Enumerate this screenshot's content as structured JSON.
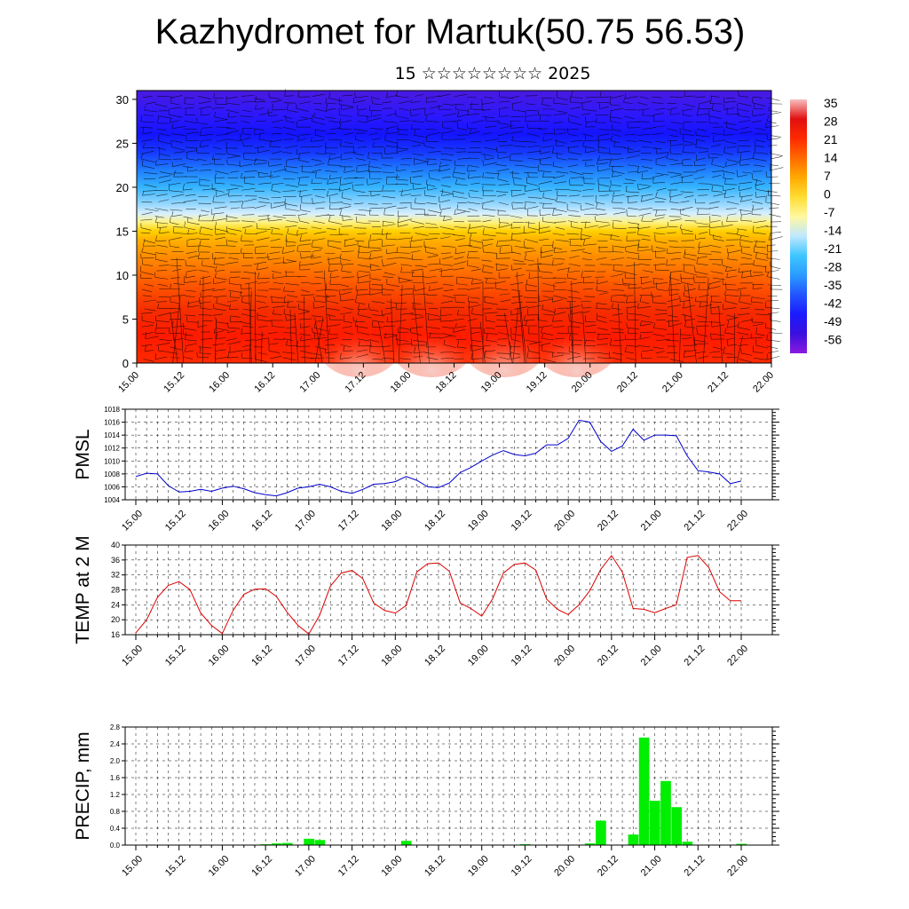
{
  "title": "Kazhydromet for Martuk(50.75 56.53)",
  "subtitle": "15 ☆☆☆☆☆☆☆☆ 2025",
  "colors": {
    "pmsl_line": "#0000cc",
    "temp_line": "#dd0000",
    "precip_bar": "#00ee00",
    "barb": "#000000"
  },
  "chart_data": [
    {
      "type": "heatmap",
      "name": "cross-section",
      "yticks": [
        "0",
        "5",
        "10",
        "15",
        "20",
        "25",
        "30"
      ],
      "ylim": [
        0,
        31
      ],
      "xticks": [
        "15.00",
        "15.12",
        "16.00",
        "16.12",
        "17.00",
        "17.12",
        "18.00",
        "18.12",
        "19.00",
        "19.12",
        "20.00",
        "20.12",
        "21.00",
        "21.12",
        "22.00"
      ],
      "colorbar_labels": [
        "35",
        "28",
        "21",
        "14",
        "7",
        "0",
        "-7",
        "-14",
        "-21",
        "-28",
        "-35",
        "-42",
        "-49",
        "-56"
      ],
      "colorbar_colors": [
        "#f8bfbf",
        "#e01010",
        "#ff2a00",
        "#ff6a00",
        "#ffaa00",
        "#ffdd33",
        "#fff8a0",
        "#bfe8ff",
        "#3fc6ff",
        "#2a9bff",
        "#2255ff",
        "#1a1aff",
        "#3a10dd",
        "#8a1ae0"
      ],
      "profile_levels": [
        0,
        3,
        6,
        9,
        12,
        14,
        15,
        16,
        17,
        18,
        20,
        22,
        24,
        26,
        28,
        31
      ],
      "profile_colors": [
        "#ff2a00",
        "#ff1a00",
        "#f52d00",
        "#ff5800",
        "#ff8a00",
        "#ffb000",
        "#ffd000",
        "#fff280",
        "#d8f0ff",
        "#9ad8ff",
        "#35b5ff",
        "#1e7bff",
        "#1638ff",
        "#1414ff",
        "#2a18ff",
        "#4a1adf"
      ],
      "warm_spots": [
        3.8,
        4.8,
        5.8,
        6.8
      ]
    },
    {
      "type": "line",
      "name": "PMSL",
      "ylabel": "PMSL",
      "ylim": [
        1004,
        1018
      ],
      "yticks": [
        "1004",
        "1006",
        "1008",
        "1010",
        "1012",
        "1014",
        "1016",
        "1018"
      ],
      "xticks": [
        "15.00",
        "15.12",
        "16.00",
        "16.12",
        "17.00",
        "17.12",
        "18.00",
        "18.12",
        "19.00",
        "19.12",
        "20.00",
        "20.12",
        "21.00",
        "21.12",
        "22.00"
      ],
      "values": [
        1007.6,
        1008.1,
        1008.0,
        1006.2,
        1005.2,
        1005.3,
        1005.6,
        1005.3,
        1005.8,
        1006.1,
        1005.7,
        1005.1,
        1004.8,
        1004.6,
        1005.1,
        1005.8,
        1006.0,
        1006.4,
        1006.0,
        1005.3,
        1005.0,
        1005.6,
        1006.4,
        1006.5,
        1006.8,
        1007.6,
        1007.0,
        1006.0,
        1005.9,
        1006.6,
        1008.2,
        1009.0,
        1010.0,
        1010.9,
        1011.6,
        1011.0,
        1010.8,
        1011.2,
        1012.5,
        1012.5,
        1013.5,
        1016.3,
        1016.0,
        1013.0,
        1011.5,
        1012.3,
        1014.9,
        1013.2,
        1014.0,
        1014.0,
        1013.9,
        1010.8,
        1008.5,
        1008.3,
        1008.0,
        1006.5,
        1006.9
      ]
    },
    {
      "type": "line",
      "name": "TEMP at 2 M",
      "ylabel": "TEMP at 2 M",
      "ylim": [
        16,
        40
      ],
      "yticks": [
        "16",
        "20",
        "24",
        "28",
        "32",
        "36",
        "40"
      ],
      "xticks": [
        "15.00",
        "15.12",
        "16.00",
        "16.12",
        "17.00",
        "17.12",
        "18.00",
        "18.12",
        "19.00",
        "19.12",
        "20.00",
        "20.12",
        "21.00",
        "21.12",
        "22.00"
      ],
      "values": [
        16.5,
        20.0,
        26.0,
        29.2,
        30.2,
        28.1,
        21.8,
        18.5,
        16.3,
        22.5,
        26.8,
        28.2,
        28.3,
        26.3,
        22.0,
        18.5,
        16.2,
        21.2,
        29.0,
        32.5,
        33.2,
        31.0,
        24.5,
        22.5,
        21.8,
        23.8,
        32.8,
        35.0,
        35.2,
        33.0,
        24.5,
        23.0,
        21.0,
        25.6,
        32.5,
        34.8,
        35.2,
        33.3,
        25.5,
        22.8,
        21.4,
        24.0,
        27.8,
        33.5,
        37.2,
        32.8,
        23.0,
        22.8,
        21.9,
        23.0,
        24.0,
        36.7,
        37.2,
        34.0,
        27.5,
        25.1,
        25.1
      ]
    },
    {
      "type": "bar",
      "name": "PRECIP",
      "ylabel": "PRECIP, mm",
      "ylim": [
        0,
        2.8
      ],
      "yticks": [
        "0.0",
        "0.4",
        "0.8",
        "1.2",
        "1.6",
        "2.0",
        "2.4",
        "2.8"
      ],
      "xticks": [
        "15.00",
        "15.12",
        "16.00",
        "16.12",
        "17.00",
        "17.12",
        "18.00",
        "18.12",
        "19.00",
        "19.12",
        "20.00",
        "20.12",
        "21.00",
        "21.12",
        "22.00"
      ],
      "values": [
        0,
        0,
        0,
        0,
        0,
        0,
        0,
        0,
        0,
        0,
        0,
        0,
        0.02,
        0.04,
        0.05,
        0,
        0.15,
        0.12,
        0,
        0,
        0,
        0,
        0,
        0,
        0,
        0.1,
        0,
        0,
        0,
        0,
        0,
        0,
        0,
        0,
        0,
        0,
        0.02,
        0,
        0,
        0,
        0,
        0,
        0.04,
        0.58,
        0,
        0,
        0.25,
        2.55,
        1.05,
        1.52,
        0.9,
        0.08,
        0,
        0,
        0,
        0,
        0.03
      ]
    }
  ]
}
